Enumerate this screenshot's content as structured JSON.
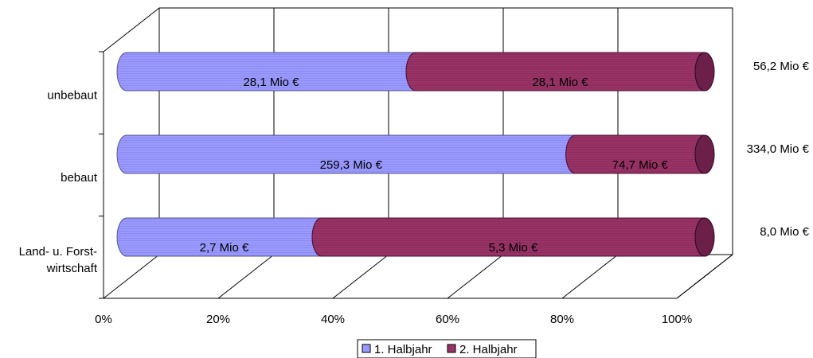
{
  "chart_data": {
    "type": "bar",
    "orientation": "horizontal",
    "stacked": "percent",
    "three_d": true,
    "categories": [
      "unbebaut",
      "bebaut",
      "Land- u. Forst-\nwirtschaft"
    ],
    "series": [
      {
        "name": "1. Halbjahr",
        "color": "#9999ff",
        "values": [
          28.1,
          259.3,
          2.7
        ],
        "labels": [
          "28,1 Mio €",
          "259,3 Mio €",
          "2,7 Mio €"
        ]
      },
      {
        "name": "2. Halbjahr",
        "color": "#993366",
        "values": [
          28.1,
          74.7,
          5.3
        ],
        "labels": [
          "28,1 Mio €",
          "74,7 Mio €",
          "5,3 Mio €"
        ]
      }
    ],
    "totals": [
      "56,2 Mio €",
      "334,0 Mio €",
      "8,0 Mio €"
    ],
    "x_ticks": [
      "0%",
      "20%",
      "40%",
      "60%",
      "80%",
      "100%"
    ],
    "xlim": [
      0,
      100
    ],
    "grid": true,
    "legend": "bottom"
  }
}
